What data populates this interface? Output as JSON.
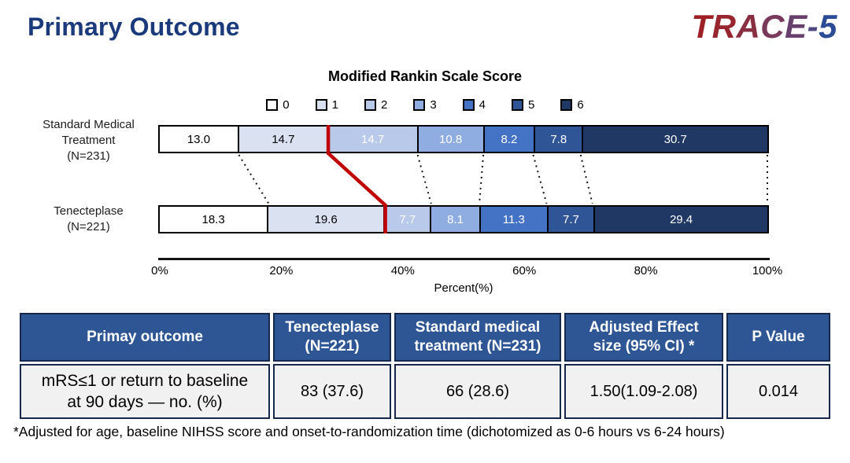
{
  "header": {
    "title": "Primary Outcome",
    "logo_text": "TRACE-5",
    "logo_letter_colors": [
      "#9e2127",
      "#97262f",
      "#8a2f41",
      "#78395a",
      "#67406c",
      "#4f4884",
      "#2b4b96"
    ]
  },
  "chart_data": {
    "type": "bar",
    "variant": "horizontal-stacked",
    "title": "Modified Rankin Scale Score",
    "xlabel": "Percent(%)",
    "xlim": [
      0,
      100
    ],
    "xticks": [
      "0%",
      "20%",
      "40%",
      "60%",
      "80%",
      "100%"
    ],
    "legend": {
      "position": "top",
      "entries": [
        "0",
        "1",
        "2",
        "3",
        "4",
        "5",
        "6"
      ]
    },
    "segment_colors": [
      "#ffffff",
      "#dae2f2",
      "#b9c9ea",
      "#8fade0",
      "#4472c4",
      "#2f5597",
      "#1f3864"
    ],
    "segment_label_colors": [
      "#000000",
      "#000000",
      "#ffffff",
      "#ffffff",
      "#ffffff",
      "#ffffff",
      "#ffffff"
    ],
    "rows": [
      {
        "label": "Standard Medical\nTreatment\n(N=231)",
        "values": [
          13.0,
          14.7,
          14.7,
          10.8,
          8.2,
          7.8,
          30.7
        ]
      },
      {
        "label": "Tenecteplase\n(N=221)",
        "values": [
          18.3,
          19.6,
          7.7,
          8.1,
          11.3,
          7.7,
          29.4
        ]
      }
    ],
    "red_divider": {
      "after_segment": 1,
      "color": "#c00000"
    },
    "connector_style": "dotted-black"
  },
  "table": {
    "header_bg": "#2e5694",
    "header_text_color": "#ffffff",
    "row_bg": "#f1f1f1",
    "headers": [
      "Primay outcome",
      "Tenecteplase\n(N=221)",
      "Standard medical\ntreatment (N=231)",
      "Adjusted Effect\nsize (95% CI) *",
      "P Value"
    ],
    "rows": [
      [
        "mRS≤1 or  return to baseline\nat 90 days — no. (%)",
        "83 (37.6)",
        "66 (28.6)",
        "1.50(1.09-2.08)",
        "0.014"
      ]
    ]
  },
  "footnote": "*Adjusted for age, baseline NIHSS score and onset-to-randomization time (dichotomized as 0-6 hours vs 6-24 hours)",
  "colors": {
    "title": "#1a3a7c",
    "axis": "#151515"
  }
}
